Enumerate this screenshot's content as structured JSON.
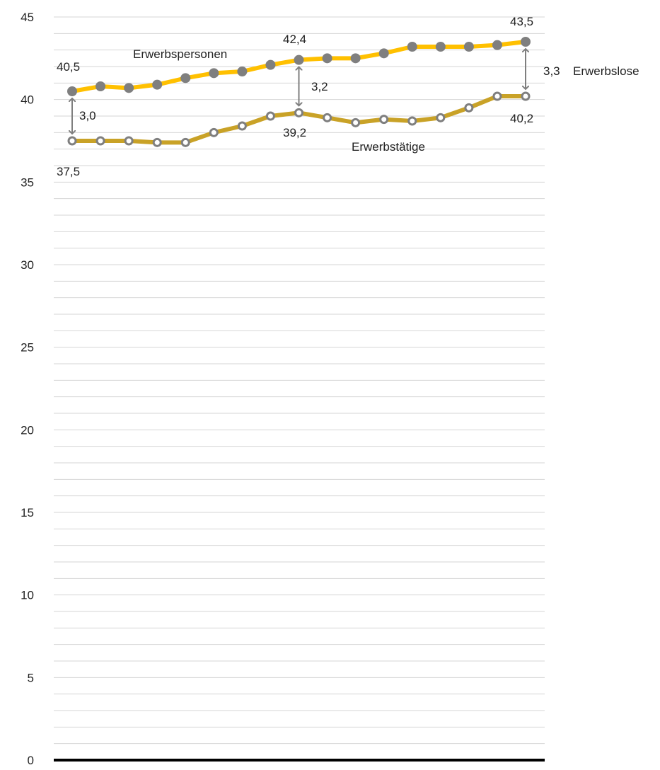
{
  "chart_data": {
    "type": "line",
    "x": [
      1,
      2,
      3,
      4,
      5,
      6,
      7,
      8,
      9,
      10,
      11,
      12,
      13,
      14,
      15,
      16,
      17
    ],
    "ylim": [
      0,
      45
    ],
    "yticks": [
      "0",
      "5",
      "10",
      "15",
      "20",
      "25",
      "30",
      "35",
      "40",
      "45"
    ],
    "grid": true,
    "series": [
      {
        "name": "Erwerbspersonen",
        "color": "#ffc000",
        "marker_color": "#7f7f7f",
        "values": [
          40.5,
          40.8,
          40.7,
          40.9,
          41.3,
          41.6,
          41.7,
          42.1,
          42.4,
          42.5,
          42.5,
          42.8,
          43.2,
          43.2,
          43.2,
          43.3,
          43.5
        ]
      },
      {
        "name": "Erwerbstätige",
        "color": "#c9a227",
        "marker_color": "#7f7f7f",
        "values": [
          37.5,
          37.5,
          37.5,
          37.4,
          37.4,
          38.0,
          38.4,
          39.0,
          39.2,
          38.9,
          38.6,
          38.8,
          38.7,
          38.9,
          39.5,
          40.2,
          40.2
        ]
      }
    ],
    "data_labels": [
      {
        "text": "40,5"
      },
      {
        "text": "42,4"
      },
      {
        "text": "43,5"
      },
      {
        "text": "37,5"
      },
      {
        "text": "39,2"
      },
      {
        "text": "40,2"
      }
    ],
    "gaps": [
      {
        "text": "3,0"
      },
      {
        "text": "3,2"
      },
      {
        "text": "3,3"
      }
    ],
    "gap_series_label": "Erwerbslose"
  }
}
